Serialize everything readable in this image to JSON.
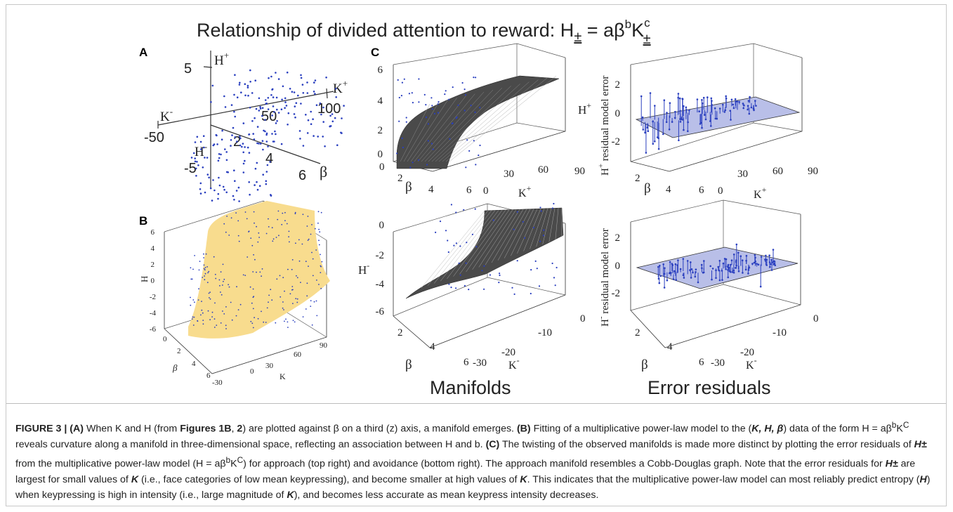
{
  "figure": {
    "title": "Relationship of divided attention to reward: H± = aβbK±c",
    "title_main": "Relationship of divided attention to reward: H",
    "title_sub": "±",
    "title_mid": " = aβ",
    "title_sup_b": "b",
    "title_K": "K",
    "title_sup_c": "c",
    "title_sub2": "±",
    "panel_labels": {
      "A": "A",
      "B": "B",
      "C": "C"
    },
    "column_labels": {
      "manifolds": "Manifolds",
      "residuals": "Error residuals"
    },
    "colors": {
      "scatter": "#2a3fbf",
      "surface_yellow": "#f8dc8e",
      "surface_gray": "#4a4a4a",
      "plane": "#b9bfe8",
      "axis": "#333333"
    }
  },
  "chart_data": [
    {
      "panel": "A",
      "type": "scatter",
      "axes": {
        "h_pos": {
          "label": "H",
          "sup": "+",
          "tick": "5"
        },
        "k_pos": {
          "label": "K",
          "sup": "+",
          "ticks": [
            "50",
            "100"
          ]
        },
        "k_neg": {
          "label": "K",
          "sup": "-",
          "tick": "-50"
        },
        "h_neg": {
          "label": "H",
          "sup": "-",
          "tick": "-5"
        },
        "beta": {
          "label": "β",
          "ticks": [
            "2",
            "4",
            "6"
          ]
        }
      }
    },
    {
      "panel": "B",
      "type": "scatter",
      "surface": "yellow manifold",
      "zlabel": "H",
      "zticks": [
        "6",
        "4",
        "2",
        "0",
        "-2",
        "-4",
        "-6"
      ],
      "xlabel": "β",
      "xticks": [
        "0",
        "2",
        "4",
        "6"
      ],
      "ylabel": "K",
      "yticks": [
        "-30",
        "0",
        "30",
        "60",
        "90"
      ]
    },
    {
      "panel": "C-manifold-top",
      "type": "scatter",
      "zlabel": "H",
      "zsup": "+",
      "zticks": [
        "6",
        "4",
        "2",
        "0"
      ],
      "xlabel": "β",
      "xticks": [
        "0",
        "2",
        "4",
        "6"
      ],
      "ylabel": "K",
      "ysup": "+",
      "yticks": [
        "0",
        "30",
        "60",
        "90"
      ]
    },
    {
      "panel": "C-residual-top",
      "type": "scatter",
      "zlabel": "H",
      "zsup": "+",
      "zlabel_rest": "residual model error",
      "zticks": [
        "2",
        "0",
        "-2"
      ],
      "xlabel": "β",
      "xticks": [
        "2",
        "4",
        "6"
      ],
      "ylabel": "K",
      "ysup": "+",
      "yticks": [
        "0",
        "30",
        "60",
        "90"
      ]
    },
    {
      "panel": "C-manifold-bottom",
      "type": "scatter",
      "zlabel": "H",
      "zsup": "-",
      "zticks": [
        "0",
        "-2",
        "-4",
        "-6"
      ],
      "xlabel": "β",
      "xticks": [
        "2",
        "4",
        "6"
      ],
      "ylabel": "K",
      "ysup": "-",
      "yticks": [
        "-30",
        "-20",
        "-10",
        "0"
      ]
    },
    {
      "panel": "C-residual-bottom",
      "type": "scatter",
      "zlabel": "H",
      "zsup": "-",
      "zlabel_rest": "residual model error",
      "zticks": [
        "2",
        "0",
        "-2"
      ],
      "xlabel": "β",
      "xticks": [
        "2",
        "4",
        "6"
      ],
      "ylabel": "K",
      "ysup": "-",
      "yticks": [
        "-30",
        "-20",
        "-10",
        "0"
      ]
    }
  ],
  "caption": {
    "fig_label": "FIGURE 3 | ",
    "a_label": "(A)",
    "s1": " When K and H (from ",
    "s1_bold": "Figures 1B",
    "s1b": ", ",
    "s1_bold2": "2",
    "s2": ") are plotted against β on a third (z) axis, a manifold emerges. ",
    "b_label": "(B)",
    "s3": " Fitting of a multiplicative power-law model to the (",
    "s3_bold": "K, H, β",
    "s4": ") data of the form H = aβ",
    "s4_sup1": "b",
    "s4_mid": "K",
    "s4_sup2": "C",
    "s5": " reveals curvature along a manifold in three-dimensional space, reflecting an association between H and b. ",
    "c_label": "(C)",
    "s6": " The twisting of the observed manifolds is made more distinct by plotting the error residuals of ",
    "s6_bold": "H±",
    "s7": " from the multiplicative power-law model (H = aβ",
    "s7_sup1": "b",
    "s7_mid": "K",
    "s7_sup2": "C",
    "s8": ") for approach (top right) and avoidance (bottom right). The approach manifold resembles a Cobb-Douglas graph. Note that the error residuals for ",
    "s8_bold": "H±",
    "s9": " are largest for small values of ",
    "s9_bold": "K",
    "s10": " (i.e., face categories of low mean keypressing), and become smaller at high values of ",
    "s10_bold": "K",
    "s11": ". This indicates that the multiplicative power-law model can most reliably predict entropy (",
    "s11_bold": "H",
    "s12": ") when keypressing is high in intensity (i.e., large magnitude of ",
    "s12_bold": "K",
    "s13": "), and becomes less accurate as mean keypress intensity decreases."
  }
}
